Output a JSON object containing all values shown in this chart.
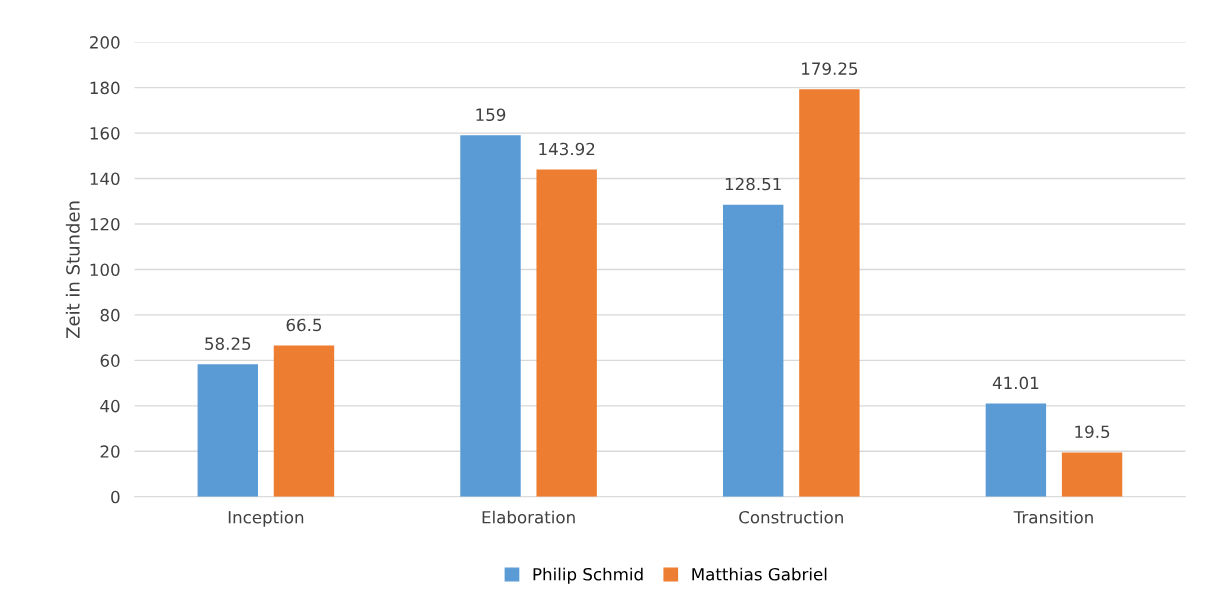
{
  "chart_data": {
    "type": "bar",
    "ylabel": "Zeit in Stunden",
    "categories": [
      "Inception",
      "Elaboration",
      "Construction",
      "Transition"
    ],
    "series": [
      {
        "name": "Philip Schmid",
        "color": "#5b9bd5",
        "values": [
          58.25,
          159,
          128.51,
          41.01
        ]
      },
      {
        "name": "Matthias Gabriel",
        "color": "#ed7d31",
        "values": [
          66.5,
          143.92,
          179.25,
          19.5
        ]
      }
    ],
    "ylim": [
      0,
      200
    ],
    "yticks": [
      0,
      20,
      40,
      60,
      80,
      100,
      120,
      140,
      160,
      180,
      200
    ],
    "grid": "y",
    "legend": "bottom",
    "data_labels": true
  }
}
